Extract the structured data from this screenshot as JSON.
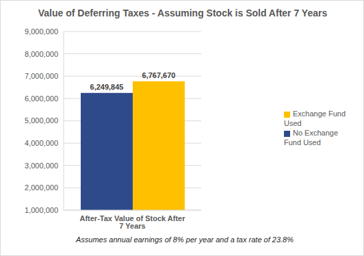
{
  "chart_data": {
    "type": "bar",
    "title": "Value of Deferring Taxes - Assuming Stock is Sold After 7 Years",
    "categories": [
      "After-Tax Value of Stock After 7 Years"
    ],
    "series": [
      {
        "name": "No Exchange Fund Used",
        "color": "#2f4a8a",
        "values": [
          6249845
        ],
        "value_labels": [
          "6,249,845"
        ]
      },
      {
        "name": "Exchange Fund Used",
        "color": "#ffc000",
        "values": [
          6767670
        ],
        "value_labels": [
          "6,767,670"
        ]
      }
    ],
    "ylim": [
      1000000,
      9000000
    ],
    "yticks": [
      {
        "value": 1000000,
        "label": "1,000,000"
      },
      {
        "value": 2000000,
        "label": "2,000,000"
      },
      {
        "value": 3000000,
        "label": "3,000,000"
      },
      {
        "value": 4000000,
        "label": "4,000,000"
      },
      {
        "value": 5000000,
        "label": "5,000,000"
      },
      {
        "value": 6000000,
        "label": "6,000,000"
      },
      {
        "value": 7000000,
        "label": "7,000,000"
      },
      {
        "value": 8000000,
        "label": "8,000,000"
      },
      {
        "value": 9000000,
        "label": "9,000,000"
      }
    ],
    "grid": true,
    "legend": "right",
    "data_labels": true,
    "annotation": "Assumes annual earnings of 8% per year and a tax rate of 23.8%"
  }
}
